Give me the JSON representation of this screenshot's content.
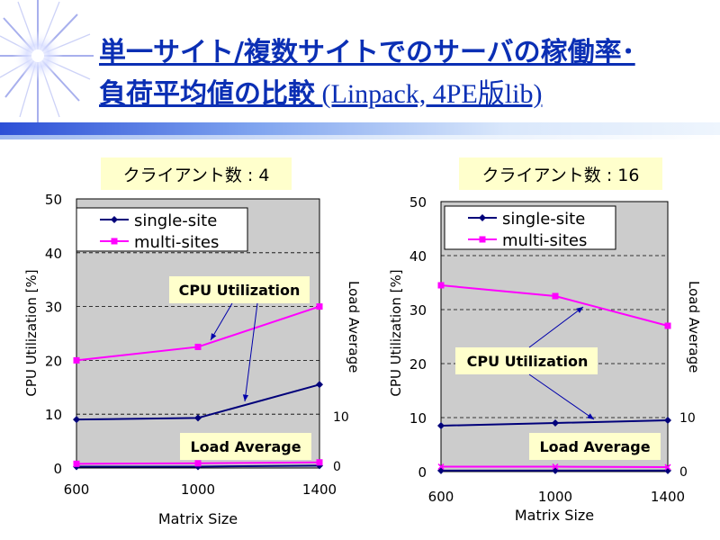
{
  "slide": {
    "title_line1": "単一サイト/複数サイトでのサーバの稼働率･",
    "title_line2_jp": "負荷平均値の比較",
    "title_line2_paren": " (Linpack,  4PE版lib)"
  },
  "colors": {
    "single": "#00007a",
    "multi": "#ff00ff",
    "title": "#0b2fb4",
    "label_box": "#ffffcc",
    "plot_bg": "#cccccc"
  },
  "chart_data": [
    {
      "type": "line",
      "title": "クライアント数 : 4",
      "xlabel": "Matrix Size",
      "ylabel": "CPU Utilization [%]",
      "y2label": "Load Average",
      "categories": [
        "600",
        "1000",
        "1400"
      ],
      "ylim": [
        0,
        50
      ],
      "yticks": [
        "0",
        "10",
        "20",
        "30",
        "40",
        "50"
      ],
      "y2lim": [
        0,
        10
      ],
      "y2ticks": [
        "0",
        "10"
      ],
      "grid": true,
      "legend": [
        "single-site",
        "multi-sites"
      ],
      "legend_placement": "top-left",
      "series": [
        {
          "name": "single-site",
          "axis": "left",
          "values": [
            9,
            9.3,
            15.5
          ]
        },
        {
          "name": "multi-sites",
          "axis": "left",
          "values": [
            20,
            22.5,
            30
          ]
        },
        {
          "name": "single-site",
          "axis": "right",
          "values": [
            0.3,
            0.3,
            0.5
          ]
        },
        {
          "name": "multi-sites",
          "axis": "right",
          "values": [
            0.9,
            1.0,
            1.2
          ]
        }
      ],
      "annotations": [
        "CPU Utilization",
        "Load Average"
      ]
    },
    {
      "type": "line",
      "title": "クライアント数 : 16",
      "xlabel": "Matrix Size",
      "ylabel": "CPU Utilization [%]",
      "y2label": "Load Average",
      "categories": [
        "600",
        "1000",
        "1400"
      ],
      "ylim": [
        0,
        50
      ],
      "yticks": [
        "0",
        "10",
        "20",
        "30",
        "40",
        "50"
      ],
      "y2lim": [
        0,
        10
      ],
      "y2ticks": [
        "0",
        "10"
      ],
      "grid": true,
      "legend": [
        "single-site",
        "multi-sites"
      ],
      "legend_placement": "top-left",
      "series": [
        {
          "name": "single-site",
          "axis": "left",
          "values": [
            8.5,
            9,
            9.5
          ]
        },
        {
          "name": "multi-sites",
          "axis": "left",
          "values": [
            34.5,
            32.5,
            27
          ]
        },
        {
          "name": "single-site",
          "axis": "right",
          "values": [
            0.2,
            0.2,
            0.2
          ]
        },
        {
          "name": "multi-sites",
          "axis": "right",
          "values": [
            1.0,
            1.0,
            0.9
          ]
        }
      ],
      "annotations": [
        "CPU Utilization",
        "Load Average"
      ]
    }
  ]
}
